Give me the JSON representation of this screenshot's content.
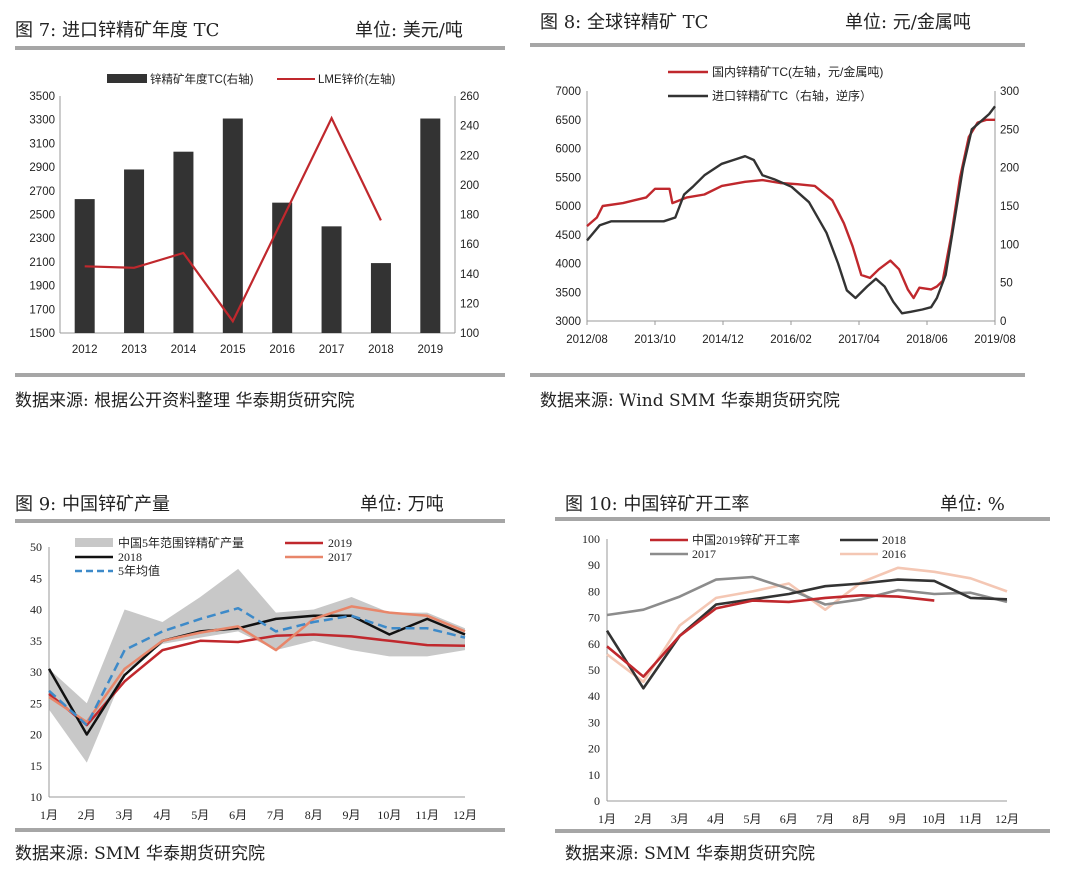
{
  "panels": [
    {
      "title": "图 7:  进口锌精矿年度 TC",
      "unit": "单位:  美元/吨",
      "source": "数据来源:  根据公开资料整理  华泰期货研究院"
    },
    {
      "title": "图 8:  全球锌精矿 TC",
      "unit": "单位:  元/金属吨",
      "source": "数据来源:  Wind SMM  华泰期货研究院"
    },
    {
      "title": "图 9:  中国锌矿产量",
      "unit": "单位:  万吨",
      "source": "数据来源:  SMM  华泰期货研究院"
    },
    {
      "title": "图 10:  中国锌矿开工率",
      "unit": "单位:  %",
      "source": "数据来源:  SMM  华泰期货研究院"
    }
  ],
  "chart_data": [
    {
      "type": "bar",
      "categories": [
        "2012",
        "2013",
        "2014",
        "2015",
        "2016",
        "2017",
        "2018",
        "2019"
      ],
      "series": [
        {
          "name": "锌精矿年度TC(右轴)",
          "type": "bar",
          "axis": "left",
          "color": "#333333",
          "values": [
            2630,
            2880,
            3030,
            3310,
            2600,
            2400,
            2090,
            3310
          ]
        },
        {
          "name": "LME锌价(左轴)",
          "type": "line",
          "axis": "right",
          "color": "#c0282d",
          "values": [
            145,
            144,
            154,
            108,
            null,
            245,
            176,
            null
          ]
        }
      ],
      "y_left": {
        "min": 1500,
        "max": 3500,
        "ticks": [
          "1500",
          "1700",
          "1900",
          "2100",
          "2300",
          "2500",
          "2700",
          "2900",
          "3100",
          "3300",
          "3500"
        ]
      },
      "y_right": {
        "min": 100,
        "max": 260,
        "ticks": [
          "100",
          "120",
          "140",
          "160",
          "180",
          "200",
          "220",
          "240",
          "260"
        ]
      },
      "legend": "top-center"
    },
    {
      "type": "line",
      "x_ticks": [
        "2012/08",
        "2013/10",
        "2014/12",
        "2016/02",
        "2017/04",
        "2018/06",
        "2019/08"
      ],
      "y_left": {
        "min": 3000,
        "max": 7000,
        "ticks": [
          "3000",
          "3500",
          "4000",
          "4500",
          "5000",
          "5500",
          "6000",
          "6500",
          "7000"
        ]
      },
      "y_right": {
        "min": 0,
        "max": 300,
        "ticks": [
          "0",
          "50",
          "100",
          "150",
          "200",
          "250",
          "300"
        ],
        "note": "reverse order per legend"
      },
      "series": [
        {
          "name": "国内锌精矿TC(左轴，元/金属吨)",
          "color": "#c0282d",
          "axis": "left",
          "points": [
            [
              2012.58,
              4650
            ],
            [
              2012.75,
              4800
            ],
            [
              2012.85,
              5000
            ],
            [
              2013.2,
              5050
            ],
            [
              2013.6,
              5150
            ],
            [
              2013.75,
              5300
            ],
            [
              2014.0,
              5300
            ],
            [
              2014.05,
              5050
            ],
            [
              2014.3,
              5150
            ],
            [
              2014.6,
              5200
            ],
            [
              2014.9,
              5350
            ],
            [
              2015.3,
              5420
            ],
            [
              2015.6,
              5450
            ],
            [
              2015.9,
              5400
            ],
            [
              2016.2,
              5380
            ],
            [
              2016.5,
              5350
            ],
            [
              2016.8,
              5100
            ],
            [
              2017.0,
              4700
            ],
            [
              2017.15,
              4300
            ],
            [
              2017.3,
              3800
            ],
            [
              2017.45,
              3750
            ],
            [
              2017.6,
              3900
            ],
            [
              2017.8,
              4050
            ],
            [
              2017.95,
              3900
            ],
            [
              2018.1,
              3550
            ],
            [
              2018.2,
              3400
            ],
            [
              2018.3,
              3580
            ],
            [
              2018.5,
              3550
            ],
            [
              2018.6,
              3600
            ],
            [
              2018.7,
              3700
            ],
            [
              2018.85,
              4500
            ],
            [
              2019.0,
              5500
            ],
            [
              2019.15,
              6200
            ],
            [
              2019.3,
              6450
            ],
            [
              2019.45,
              6500
            ],
            [
              2019.6,
              6500
            ]
          ]
        },
        {
          "name": "进口锌精矿TC（右轴，逆序）",
          "color": "#333333",
          "axis": "right",
          "points": [
            [
              2012.58,
              105
            ],
            [
              2012.8,
              125
            ],
            [
              2013.0,
              130
            ],
            [
              2013.5,
              130
            ],
            [
              2013.9,
              130
            ],
            [
              2014.1,
              135
            ],
            [
              2014.25,
              165
            ],
            [
              2014.4,
              175
            ],
            [
              2014.6,
              190
            ],
            [
              2014.9,
              205
            ],
            [
              2015.1,
              210
            ],
            [
              2015.3,
              215
            ],
            [
              2015.45,
              210
            ],
            [
              2015.6,
              190
            ],
            [
              2015.8,
              185
            ],
            [
              2016.1,
              175
            ],
            [
              2016.4,
              155
            ],
            [
              2016.7,
              115
            ],
            [
              2016.9,
              75
            ],
            [
              2017.05,
              40
            ],
            [
              2017.2,
              30
            ],
            [
              2017.4,
              45
            ],
            [
              2017.55,
              55
            ],
            [
              2017.7,
              45
            ],
            [
              2017.85,
              25
            ],
            [
              2018.0,
              10
            ],
            [
              2018.15,
              12
            ],
            [
              2018.35,
              15
            ],
            [
              2018.5,
              18
            ],
            [
              2018.6,
              30
            ],
            [
              2018.75,
              60
            ],
            [
              2018.9,
              130
            ],
            [
              2019.05,
              200
            ],
            [
              2019.2,
              250
            ],
            [
              2019.35,
              260
            ],
            [
              2019.5,
              270
            ],
            [
              2019.6,
              280
            ]
          ]
        }
      ],
      "legend": "top-left"
    },
    {
      "type": "line",
      "categories": [
        "1月",
        "2月",
        "3月",
        "4月",
        "5月",
        "6月",
        "7月",
        "8月",
        "9月",
        "10月",
        "11月",
        "12月"
      ],
      "y": {
        "min": 10,
        "max": 50,
        "ticks": [
          "10",
          "15",
          "20",
          "25",
          "30",
          "35",
          "40",
          "45",
          "50"
        ]
      },
      "band": {
        "name": "中国5年范围锌精矿产量",
        "color": "#c8c8c8",
        "lower": [
          24,
          15.5,
          30,
          34.5,
          35.5,
          36.5,
          33.5,
          35,
          33.5,
          32.5,
          32.5,
          33.5
        ],
        "upper": [
          30.5,
          25,
          40,
          38,
          42,
          46.5,
          39.5,
          40,
          42,
          39.5,
          39.5,
          37
        ]
      },
      "series": [
        {
          "name": "2019",
          "color": "#c0282d",
          "dash": false,
          "values": [
            26.5,
            21.5,
            28.5,
            33.5,
            35,
            34.8,
            35.8,
            36,
            35.7,
            35,
            34.3,
            34.2
          ]
        },
        {
          "name": "2018",
          "color": "#111111",
          "dash": false,
          "values": [
            30.5,
            20,
            29.5,
            35,
            36.5,
            37,
            38.5,
            39,
            39,
            36,
            38.5,
            36
          ]
        },
        {
          "name": "2017",
          "color": "#e8866a",
          "dash": false,
          "values": [
            26,
            22,
            30.5,
            35,
            36.3,
            37.3,
            33.5,
            38.5,
            40.5,
            39.5,
            39,
            36.5
          ]
        },
        {
          "name": "5年均值",
          "color": "#3d8ac9",
          "dash": true,
          "values": [
            27,
            21.5,
            33.5,
            36.5,
            38.5,
            40.2,
            36.5,
            38,
            39,
            37,
            37,
            35.5
          ]
        }
      ],
      "legend": "top"
    },
    {
      "type": "line",
      "categories": [
        "1月",
        "2月",
        "3月",
        "4月",
        "5月",
        "6月",
        "7月",
        "8月",
        "9月",
        "10月",
        "11月",
        "12月"
      ],
      "y": {
        "min": 0,
        "max": 100,
        "ticks": [
          "0",
          "10",
          "20",
          "30",
          "40",
          "50",
          "60",
          "70",
          "80",
          "90",
          "100"
        ]
      },
      "series": [
        {
          "name": "中国2019锌矿开工率",
          "color": "#c0282d",
          "values": [
            59,
            47.5,
            63,
            73.5,
            76.5,
            76,
            77.5,
            78.5,
            78,
            76.5,
            null,
            null
          ]
        },
        {
          "name": "2018",
          "color": "#333333",
          "values": [
            65,
            43,
            63,
            75,
            77,
            79,
            82,
            83,
            84.5,
            84,
            77.5,
            77
          ]
        },
        {
          "name": "2017",
          "color": "#8c8c8c",
          "values": [
            71,
            73,
            78,
            84.5,
            85.5,
            81,
            75,
            77,
            80.5,
            79,
            79.5,
            76
          ]
        },
        {
          "name": "2016",
          "color": "#f4c7b4",
          "values": [
            56,
            45.5,
            67,
            77.5,
            80,
            83,
            73,
            83.5,
            89,
            87.5,
            85,
            80
          ]
        }
      ],
      "legend": "top"
    }
  ]
}
